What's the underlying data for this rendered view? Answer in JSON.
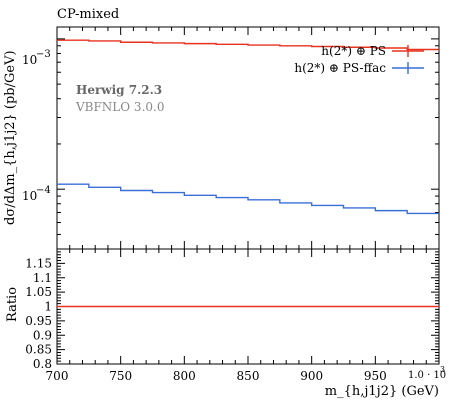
{
  "chart_data": [
    {
      "type": "line",
      "title": "CP-mixed",
      "ylabel": "dσ/dΔm_{h,j1j2} (pb/GeV)",
      "xlabel": "m_{h,j1j2} (GeV)",
      "yscale": "log",
      "xlim": [
        700,
        1000
      ],
      "ylim": [
        4e-05,
        0.0012
      ],
      "y_tick_labels": {
        "major_1e-3": "10",
        "major_1e-3_exp": "−3",
        "major_1e-4": "10",
        "major_1e-4_exp": "−4"
      },
      "annotations": [
        "Herwig 7.2.3",
        "VBFNLO 3.0.0"
      ],
      "legend_position": "top-right",
      "x_edges": [
        700,
        725,
        750,
        775,
        800,
        825,
        850,
        875,
        900,
        925,
        950,
        975,
        1000
      ],
      "series": [
        {
          "name": "h(2*) ⊕ PS",
          "color": "#e8321e",
          "values": [
            0.00098,
            0.00097,
            0.00095,
            0.00094,
            0.00093,
            0.00092,
            0.00091,
            0.0009,
            0.00089,
            0.00088,
            0.00087,
            0.00085
          ]
        },
        {
          "name": "h(2*) ⊕ PS-ffac",
          "color": "#3a6fd8",
          "values": [
            0.000108,
            0.000103,
            9.8e-05,
            9.5e-05,
            9.1e-05,
            8.8e-05,
            8.5e-05,
            8.1e-05,
            7.8e-05,
            7.5e-05,
            7.2e-05,
            6.9e-05
          ]
        }
      ]
    },
    {
      "type": "line",
      "ylabel": "Ratio",
      "xlabel": "m_{h,j1j2} (GeV)",
      "x_scale_label": "1.0 · 10",
      "x_scale_exp": "3",
      "xlim": [
        700,
        1000
      ],
      "ylim": [
        0.8,
        1.2
      ],
      "x_ticks": [
        700,
        750,
        800,
        850,
        900,
        950
      ],
      "y_ticks": [
        "0.8",
        "0.85",
        "0.9",
        "0.95",
        "1",
        "1.05",
        "1.1",
        "1.15"
      ],
      "series": [
        {
          "name": "",
          "color": "#e8321e",
          "values": [
            1,
            1,
            1,
            1,
            1,
            1,
            1,
            1,
            1,
            1,
            1,
            1
          ]
        }
      ]
    }
  ]
}
